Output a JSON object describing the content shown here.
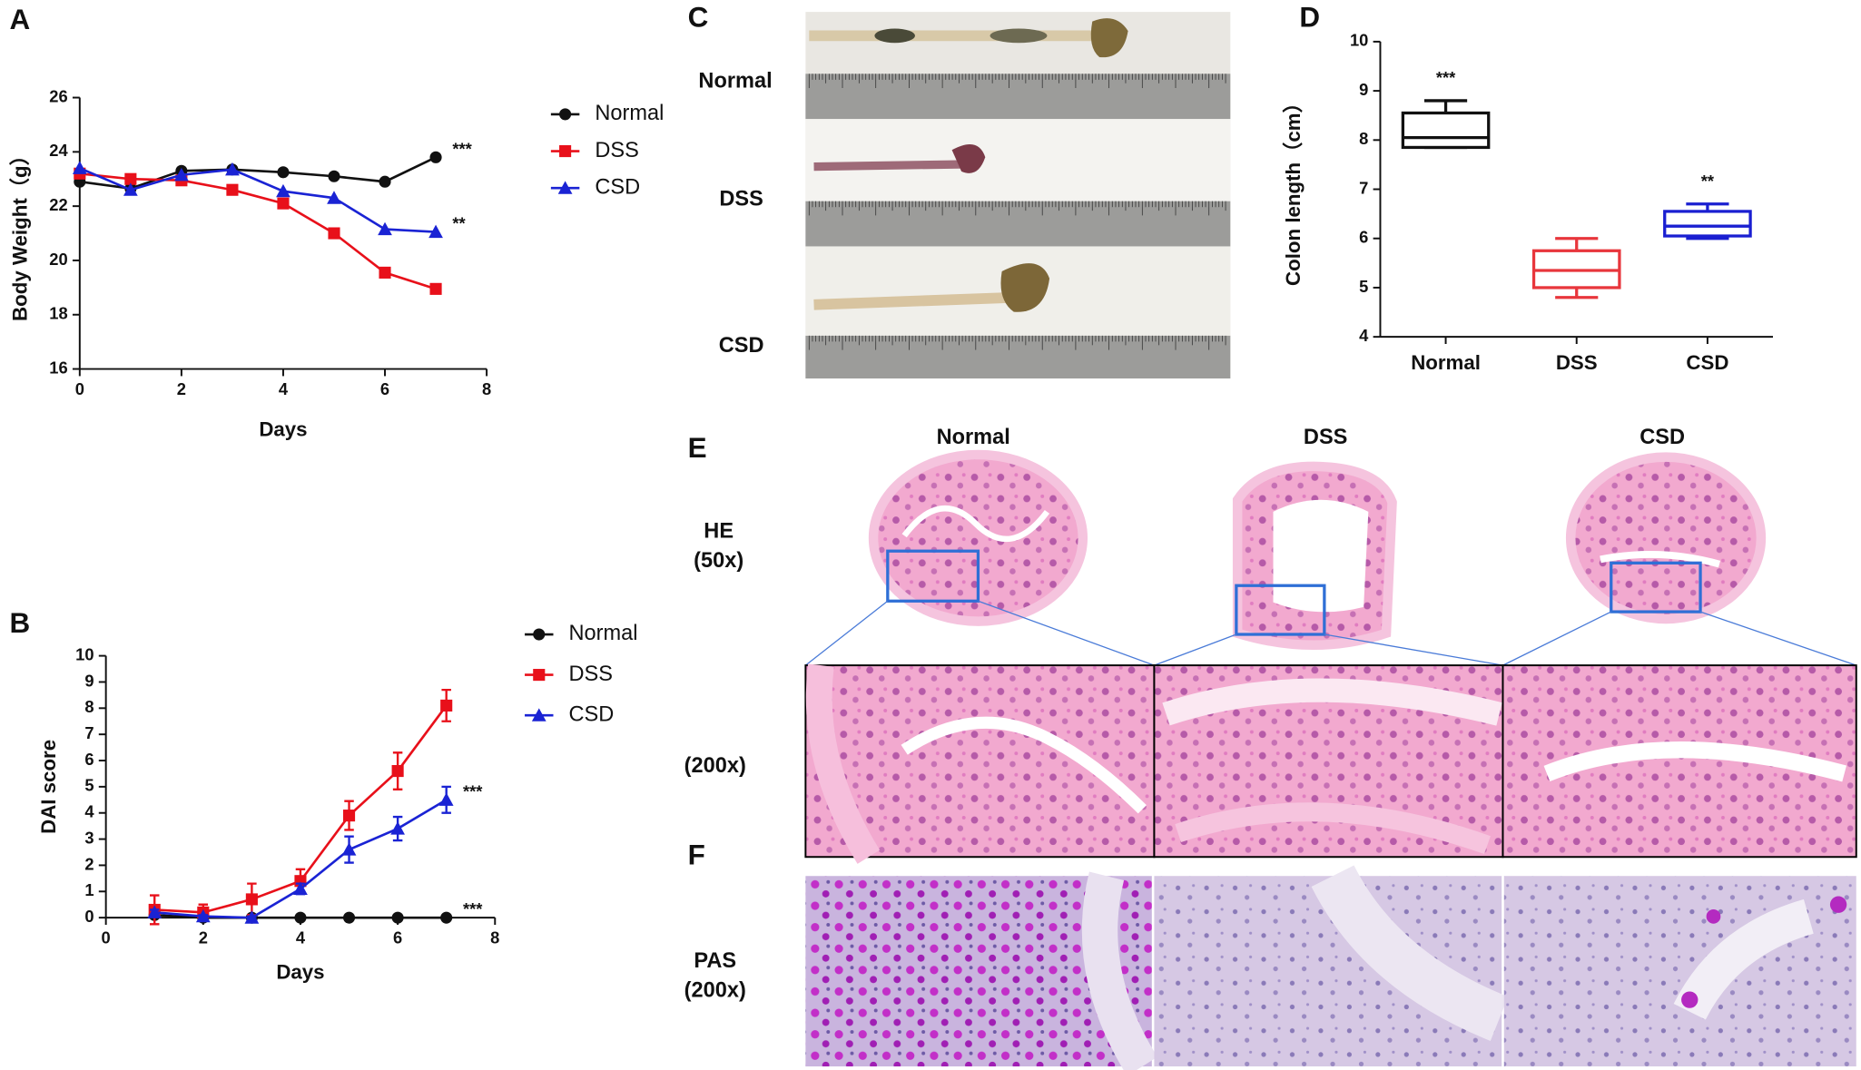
{
  "panel_labels": [
    "A",
    "B",
    "C",
    "D",
    "E",
    "F"
  ],
  "chart_data": [
    {
      "type": "line",
      "ylabel": "Body Weight（g）",
      "xlabel": "Days",
      "xlim": [
        0,
        8
      ],
      "xticks": [
        0,
        2,
        4,
        6,
        8
      ],
      "ylim": [
        16,
        26
      ],
      "yticks": [
        16,
        18,
        20,
        22,
        24,
        26
      ],
      "legend": "right",
      "x": [
        0,
        1,
        2,
        3,
        4,
        5,
        6,
        7
      ],
      "series": [
        {
          "name": "Normal",
          "color": "#111111",
          "marker": "circle",
          "values": [
            22.9,
            22.65,
            23.3,
            23.35,
            23.25,
            23.1,
            22.9,
            23.8
          ],
          "end_label": "***"
        },
        {
          "name": "DSS",
          "color": "#e8101a",
          "marker": "square",
          "values": [
            23.2,
            23.0,
            22.95,
            22.6,
            22.1,
            21.0,
            19.55,
            18.95
          ]
        },
        {
          "name": "CSD",
          "color": "#1a23d4",
          "marker": "triangle",
          "values": [
            23.4,
            22.6,
            23.15,
            23.35,
            22.55,
            22.3,
            21.15,
            21.05
          ],
          "end_label": "**"
        }
      ]
    },
    {
      "type": "line",
      "ylabel": "DAI score",
      "xlabel": "Days",
      "xlim": [
        0,
        8
      ],
      "xticks": [
        0,
        2,
        4,
        6,
        8
      ],
      "ylim": [
        0,
        10
      ],
      "yticks": [
        0,
        1,
        2,
        3,
        4,
        5,
        6,
        7,
        8,
        9,
        10
      ],
      "legend": "right",
      "x": [
        1,
        2,
        3,
        4,
        5,
        6,
        7
      ],
      "series": [
        {
          "name": "Normal",
          "color": "#111111",
          "marker": "circle",
          "values": [
            0.1,
            0,
            0,
            0,
            0,
            0,
            0
          ],
          "end_label": "***"
        },
        {
          "name": "DSS",
          "color": "#e8101a",
          "marker": "square",
          "values": [
            0.3,
            0.2,
            0.7,
            1.4,
            3.9,
            5.6,
            8.1
          ],
          "errors": [
            0.55,
            0.3,
            0.6,
            0.45,
            0.55,
            0.7,
            0.6
          ]
        },
        {
          "name": "CSD",
          "color": "#1a23d4",
          "marker": "triangle",
          "values": [
            0.2,
            0.05,
            0,
            1.1,
            2.6,
            3.4,
            4.5
          ],
          "errors": [
            0.1,
            0.05,
            0.05,
            0.2,
            0.5,
            0.45,
            0.5
          ],
          "end_label": "***"
        }
      ]
    },
    {
      "type": "box",
      "ylabel": "Colon length（cm）",
      "ylim": [
        4,
        10
      ],
      "yticks": [
        4,
        5,
        6,
        7,
        8,
        9,
        10
      ],
      "categories": [
        "Normal",
        "DSS",
        "CSD"
      ],
      "boxes": [
        {
          "min": 7.85,
          "q1": 7.85,
          "median": 8.05,
          "q3": 8.55,
          "max": 8.8,
          "color": "#111111"
        },
        {
          "min": 4.8,
          "q1": 5.0,
          "median": 5.35,
          "q3": 5.75,
          "max": 6.0,
          "color": "#e8363c"
        },
        {
          "min": 6.0,
          "q1": 6.05,
          "median": 6.25,
          "q3": 6.55,
          "max": 6.7,
          "color": "#1a1fd1"
        }
      ],
      "significance": [
        "***",
        null,
        "**"
      ]
    }
  ],
  "photos": {
    "C": {
      "rows": [
        "Normal",
        "DSS",
        "CSD"
      ]
    },
    "E": {
      "columns": [
        "Normal",
        "DSS",
        "CSD"
      ],
      "rows": [
        [
          "HE",
          "(50x)"
        ],
        [
          "(200x)"
        ]
      ]
    },
    "F": {
      "rows": [
        [
          "PAS",
          "(200x)"
        ]
      ]
    }
  }
}
